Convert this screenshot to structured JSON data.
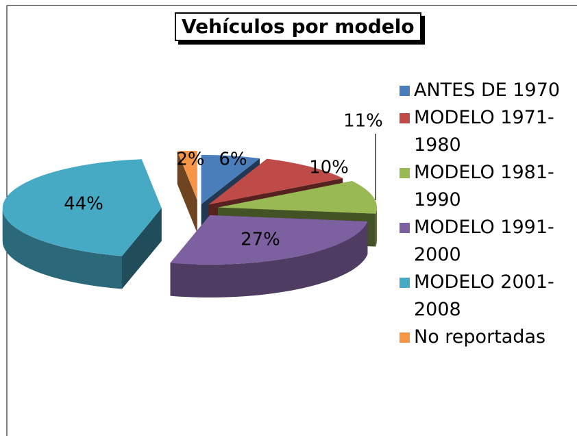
{
  "chart_data": {
    "type": "pie",
    "title": "Vehículos por modelo",
    "categories": [
      "ANTES DE 1970",
      "MODELO 1971-1980",
      "MODELO 1981-1990",
      "MODELO 1991-2000",
      "MODELO 2001-2008",
      "No reportadas"
    ],
    "values": [
      6,
      10,
      11,
      27,
      44,
      2
    ],
    "value_labels": [
      "6%",
      "10%",
      "11%",
      "27%",
      "44%",
      "2%"
    ],
    "colors": [
      "#4a7ebb",
      "#be4b48",
      "#98b954",
      "#7d60a0",
      "#46aac5",
      "#f79646"
    ],
    "legend": "right"
  }
}
